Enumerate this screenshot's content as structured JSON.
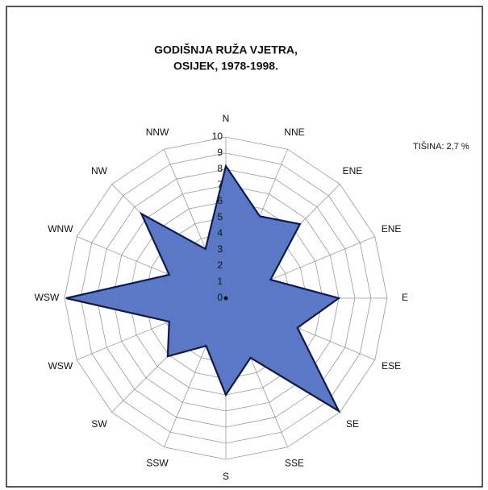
{
  "chart_data": {
    "type": "radar",
    "title": "GODIŠNJA RUŽA VJETRA,",
    "subtitle": "OSIJEK, 1978-1998.",
    "annotation": "TIŠINA: 2,7 %",
    "categories": [
      "N",
      "NNE",
      "ENE",
      "ENE",
      "E",
      "ESE",
      "SE",
      "SSE",
      "S",
      "SSW",
      "SW",
      "WSW",
      "WSW",
      "WNW",
      "NW",
      "NNW"
    ],
    "values": [
      8.2,
      5.5,
      6.5,
      3.0,
      7.0,
      4.8,
      9.9,
      4.0,
      6.0,
      3.2,
      5.1,
      3.8,
      9.9,
      3.8,
      7.4,
      3.3
    ],
    "color": "#5a78c6",
    "rlim": [
      0,
      10
    ],
    "rticks": [
      0,
      1,
      2,
      3,
      4,
      5,
      6,
      7,
      8,
      9,
      10
    ],
    "grid": true
  }
}
